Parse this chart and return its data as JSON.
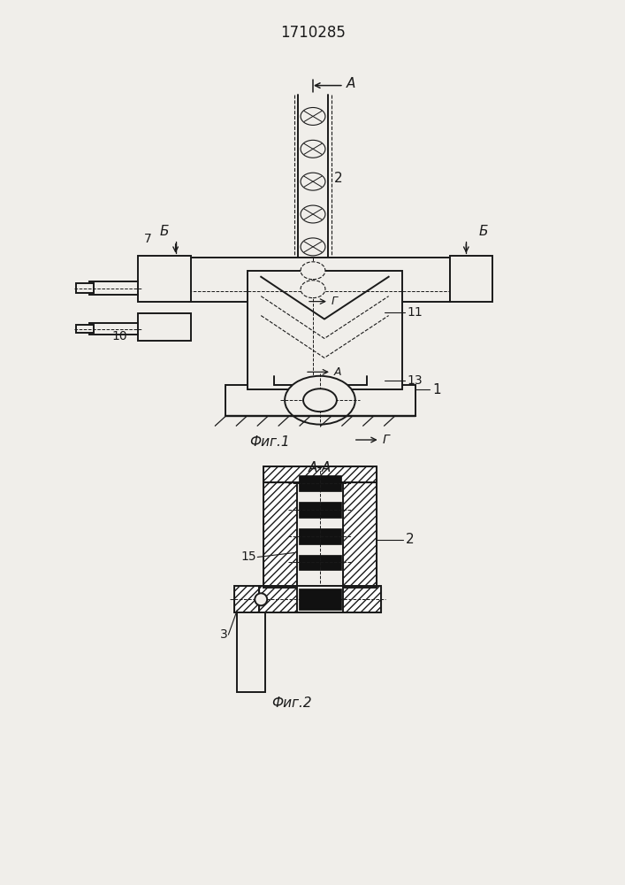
{
  "title": "1710285",
  "fig1_label": "Фиг.1",
  "fig2_label": "Фиг.2",
  "section_label": "А-А",
  "bg_color": "#f0eeea",
  "line_color": "#1a1a1a",
  "lw_main": 1.4,
  "lw_thin": 0.8,
  "lw_dash": 0.7
}
